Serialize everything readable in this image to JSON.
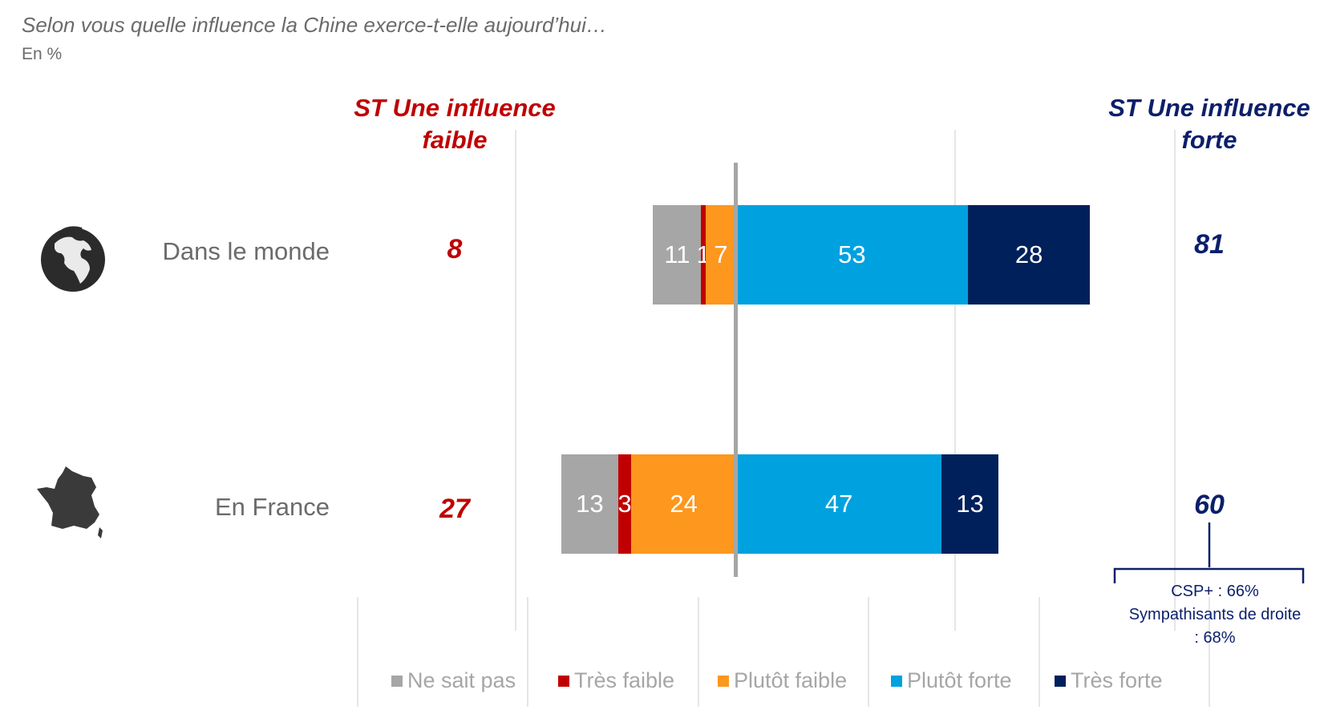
{
  "title": "Selon vous quelle influence la Chine exerce-t-elle aujourd’hui…",
  "unit": "En %",
  "colors": {
    "ne_sait_pas": "#a6a6a6",
    "tres_faible": "#c00000",
    "plutot_faible": "#fd971e",
    "plutot_forte": "#00a1df",
    "tres_forte": "#00205b",
    "red_text": "#c00000",
    "navy_text": "#0b1f6b"
  },
  "headers": {
    "faible": "ST Une influence faible",
    "forte": "ST Une influence forte"
  },
  "annotation": {
    "line1": "CSP+  : 66%",
    "line2": "Sympathisants de droite : 68%"
  },
  "chart_data": {
    "type": "bar",
    "orientation": "horizontal-diverging",
    "categories": [
      "Dans le monde",
      "En France"
    ],
    "icons": [
      "globe-icon",
      "france-map-icon"
    ],
    "series": [
      {
        "name": "Ne sait pas",
        "values": [
          11,
          13
        ]
      },
      {
        "name": "Très faible",
        "values": [
          1,
          3
        ]
      },
      {
        "name": "Plutôt faible",
        "values": [
          7,
          24
        ]
      },
      {
        "name": "Plutôt forte",
        "values": [
          53,
          47
        ]
      },
      {
        "name": "Très forte",
        "values": [
          28,
          13
        ]
      }
    ],
    "st_faible": [
      "8",
      "27"
    ],
    "st_forte": [
      "81",
      "60"
    ],
    "xlim": [
      -50,
      100
    ],
    "legend": [
      "Ne sait pas",
      "Très faible",
      "Plutôt faible",
      "Plutôt forte",
      "Très forte"
    ],
    "legend_position": "bottom"
  }
}
